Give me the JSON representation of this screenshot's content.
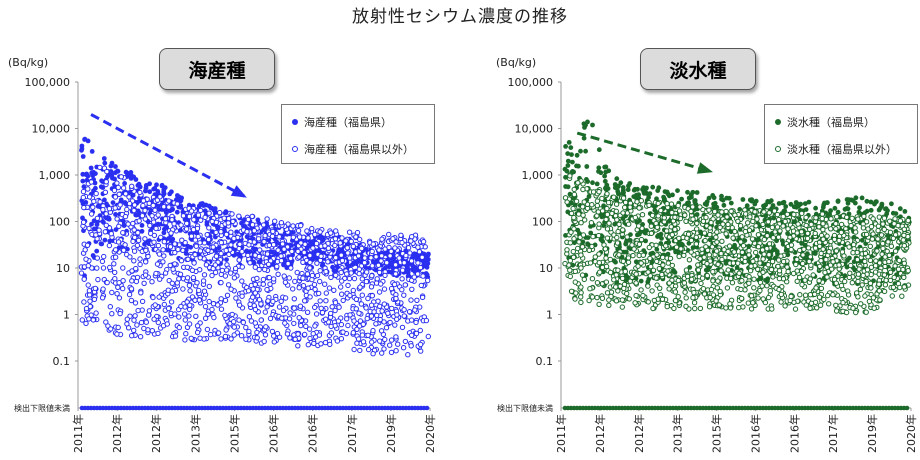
{
  "title": "放射性セシウム濃度の推移",
  "colors": {
    "marine": "#2a2ff0",
    "freshwater": "#1c6b2a"
  },
  "panels": [
    {
      "name": "marine",
      "unit": "(Bq/kg)",
      "title": "海産種",
      "legend": [
        "海産種（福島県）",
        "海産種（福島県以外）"
      ]
    },
    {
      "name": "freshwater",
      "unit": "(Bq/kg)",
      "title": "淡水種",
      "legend": [
        "淡水種（福島県）",
        "淡水種（福島県以外）"
      ]
    }
  ],
  "chart_data": [
    {
      "type": "scatter",
      "title": "海産種",
      "ylabel": "(Bq/kg)",
      "yscale": "log",
      "ylim": [
        0.01,
        100000
      ],
      "y_ticks": [
        "100,000",
        "10,000",
        "1,000",
        "100",
        "10",
        "1",
        "0.1"
      ],
      "y_tick_values": [
        100000,
        10000,
        1000,
        100,
        10,
        1,
        0.1
      ],
      "nd_label": "検出下限値未満",
      "x_ticks": [
        "2011年",
        "2012年",
        "2012年",
        "2013年",
        "2015年",
        "2016年",
        "2016年",
        "2017年",
        "2019年",
        "2020年"
      ],
      "xlim": [
        "2011-04",
        "2020-04"
      ],
      "trend_arrow": {
        "from": [
          "2011-08",
          20000
        ],
        "to": [
          "2015-07",
          350
        ]
      },
      "series": [
        {
          "name": "海産種（福島県）",
          "marker": "filled",
          "upper_envelope": [
            [
              "2011-05",
              14000
            ],
            [
              "2011-09",
              3000
            ],
            [
              "2012-01",
              2200
            ],
            [
              "2012-06",
              1500
            ],
            [
              "2013-01",
              700
            ],
            [
              "2013-06",
              600
            ],
            [
              "2014-01",
              300
            ],
            [
              "2014-06",
              250
            ],
            [
              "2015-01",
              180
            ],
            [
              "2016-01",
              100
            ],
            [
              "2017-01",
              60
            ],
            [
              "2018-01",
              45
            ],
            [
              "2019-01",
              30
            ],
            [
              "2020-03",
              20
            ]
          ],
          "lower_envelope": [
            [
              "2011-05",
              3
            ],
            [
              "2012-01",
              30
            ],
            [
              "2013-01",
              20
            ],
            [
              "2014-01",
              15
            ],
            [
              "2016-01",
              10
            ],
            [
              "2018-01",
              8
            ],
            [
              "2020-03",
              6
            ]
          ]
        },
        {
          "name": "海産種（福島県以外）",
          "marker": "open",
          "upper_envelope": [
            [
              "2011-05",
              400
            ],
            [
              "2012-01",
              2500
            ],
            [
              "2012-06",
              900
            ],
            [
              "2013-01",
              500
            ],
            [
              "2014-01",
              200
            ],
            [
              "2016-01",
              120
            ],
            [
              "2018-01",
              60
            ],
            [
              "2020-03",
              50
            ]
          ],
          "lower_envelope": [
            [
              "2011-05",
              0.5
            ],
            [
              "2012-01",
              0.2
            ],
            [
              "2013-01",
              0.2
            ],
            [
              "2015-01",
              0.2
            ],
            [
              "2017-01",
              0.15
            ],
            [
              "2019-01",
              0.1
            ],
            [
              "2020-03",
              0.1
            ]
          ]
        }
      ]
    },
    {
      "type": "scatter",
      "title": "淡水種",
      "ylabel": "(Bq/kg)",
      "yscale": "log",
      "ylim": [
        0.01,
        100000
      ],
      "y_ticks": [
        "100,000",
        "10,000",
        "1,000",
        "100",
        "10",
        "1",
        "0.1"
      ],
      "y_tick_values": [
        100000,
        10000,
        1000,
        100,
        10,
        1,
        0.1
      ],
      "nd_label": "検出下限値未満",
      "x_ticks": [
        "2011年",
        "2012年",
        "2012年",
        "2013年",
        "2015年",
        "2016年",
        "2016年",
        "2017年",
        "2019年",
        "2020年"
      ],
      "xlim": [
        "2011-04",
        "2020-04"
      ],
      "trend_arrow": {
        "from": [
          "2011-09",
          8000
        ],
        "to": [
          "2015-02",
          1200
        ]
      },
      "series": [
        {
          "name": "淡水種（福島県）",
          "marker": "filled",
          "upper_envelope": [
            [
              "2011-05",
              4500
            ],
            [
              "2012-01",
              18000
            ],
            [
              "2012-06",
              1500
            ],
            [
              "2013-01",
              700
            ],
            [
              "2014-01",
              500
            ],
            [
              "2015-01",
              400
            ],
            [
              "2016-01",
              300
            ],
            [
              "2017-01",
              300
            ],
            [
              "2018-01",
              250
            ],
            [
              "2019-01",
              350
            ],
            [
              "2020-03",
              200
            ]
          ],
          "lower_envelope": [
            [
              "2011-05",
              5
            ],
            [
              "2013-01",
              5
            ],
            [
              "2016-01",
              5
            ],
            [
              "2018-01",
              4
            ],
            [
              "2020-03",
              4
            ]
          ]
        },
        {
          "name": "淡水種（福島県以外）",
          "marker": "open",
          "upper_envelope": [
            [
              "2011-05",
              1200
            ],
            [
              "2012-01",
              600
            ],
            [
              "2013-01",
              300
            ],
            [
              "2015-01",
              200
            ],
            [
              "2018-01",
              150
            ],
            [
              "2020-03",
              120
            ]
          ],
          "lower_envelope": [
            [
              "2011-05",
              2
            ],
            [
              "2012-01",
              1
            ],
            [
              "2014-01",
              1
            ],
            [
              "2017-01",
              1
            ],
            [
              "2019-01",
              0.8
            ],
            [
              "2020-03",
              2
            ]
          ]
        }
      ]
    }
  ]
}
